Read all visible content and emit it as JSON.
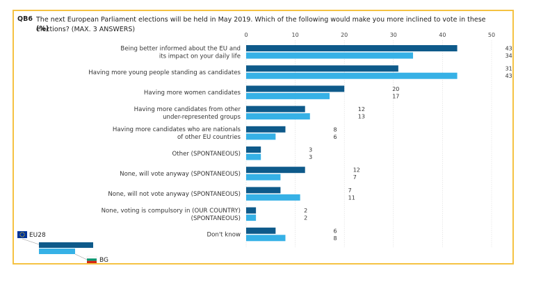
{
  "question": {
    "code": "QB6",
    "text": "The next European Parliament elections will be held in May 2019. Which of the following would make you more inclined to vote in these elections? (MAX. 3 ANSWERS)",
    "unit": "(%)"
  },
  "legend": {
    "series1": "EU28",
    "series2": "BG"
  },
  "colors": {
    "eu28": "#0e5a8a",
    "bg": "#36b1e6",
    "frame": "#f5c242",
    "grid": "#d9d9d9"
  },
  "chart_data": {
    "type": "bar",
    "orientation": "horizontal",
    "title": "The next European Parliament elections will be held in May 2019. Which of the following would make you more inclined to vote in these elections? (MAX. 3 ANSWERS)",
    "xlabel": "(%)",
    "xlim": [
      0,
      50
    ],
    "xticks": [
      0,
      10,
      20,
      30,
      40,
      50
    ],
    "grid": true,
    "categories": [
      [
        "Being better informed about the EU and",
        "its impact on your daily life"
      ],
      [
        "Having more young people standing as candidates"
      ],
      [
        "Having more women candidates"
      ],
      [
        "Having more candidates from other",
        "under-represented groups"
      ],
      [
        "Having more candidates who are nationals",
        "of other EU countries"
      ],
      [
        "Other (SPONTANEOUS)"
      ],
      [
        "None, will vote anyway (SPONTANEOUS)"
      ],
      [
        "None, will not vote anyway (SPONTANEOUS)"
      ],
      [
        "None, voting is compulsory in (OUR COUNTRY)",
        "(SPONTANEOUS)"
      ],
      [
        "Don't know"
      ]
    ],
    "series": [
      {
        "name": "EU28",
        "values": [
          43,
          31,
          20,
          12,
          8,
          3,
          12,
          7,
          2,
          6
        ]
      },
      {
        "name": "BG",
        "values": [
          34,
          43,
          17,
          13,
          6,
          3,
          7,
          11,
          2,
          8
        ]
      }
    ]
  }
}
